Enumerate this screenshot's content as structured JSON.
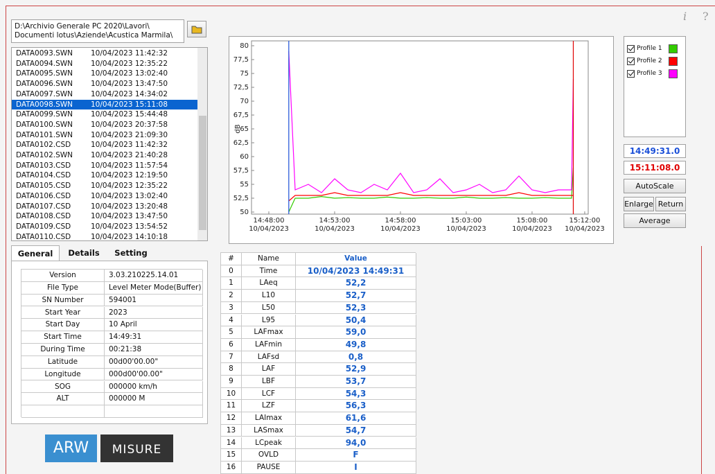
{
  "window": {
    "info_icon": "i",
    "help_icon": "?"
  },
  "path": [
    "D:\\Archivio Generale PC 2020\\Lavori\\",
    "Documenti lotus\\Aziende\\Acustica Marmila\\"
  ],
  "files": [
    [
      "DATA0093.SWN",
      "10/04/2023 11:42:32"
    ],
    [
      "DATA0094.SWN",
      "10/04/2023 12:35:22"
    ],
    [
      "DATA0095.SWN",
      "10/04/2023 13:02:40"
    ],
    [
      "DATA0096.SWN",
      "10/04/2023 13:47:50"
    ],
    [
      "DATA0097.SWN",
      "10/04/2023 14:34:02"
    ],
    [
      "DATA0098.SWN",
      "10/04/2023 15:11:08"
    ],
    [
      "DATA0099.SWN",
      "10/04/2023 15:44:48"
    ],
    [
      "DATA0100.SWN",
      "10/04/2023 20:37:58"
    ],
    [
      "DATA0101.SWN",
      "10/04/2023 21:09:30"
    ],
    [
      "DATA0102.CSD",
      "10/04/2023 11:42:32"
    ],
    [
      "DATA0102.SWN",
      "10/04/2023 21:40:28"
    ],
    [
      "DATA0103.CSD",
      "10/04/2023 11:57:54"
    ],
    [
      "DATA0104.CSD",
      "10/04/2023 12:19:50"
    ],
    [
      "DATA0105.CSD",
      "10/04/2023 12:35:22"
    ],
    [
      "DATA0106.CSD",
      "10/04/2023 13:02:40"
    ],
    [
      "DATA0107.CSD",
      "10/04/2023 13:20:48"
    ],
    [
      "DATA0108.CSD",
      "10/04/2023 13:47:50"
    ],
    [
      "DATA0109.CSD",
      "10/04/2023 13:54:52"
    ],
    [
      "DATA0110.CSD",
      "10/04/2023 14:10:18"
    ]
  ],
  "selected_file": 5,
  "tabs": [
    "General",
    "Details",
    "Setting"
  ],
  "info": [
    [
      "Version",
      "3.03.210225.14.01"
    ],
    [
      "File Type",
      "Level Meter Mode(Buffer)"
    ],
    [
      "SN Number",
      "594001"
    ],
    [
      "Start Year",
      "2023"
    ],
    [
      "Start Day",
      "10 April"
    ],
    [
      "Start Time",
      "14:49:31"
    ],
    [
      "During Time",
      "00:21:38"
    ],
    [
      "Latitude",
      "00d00'00.00\""
    ],
    [
      "Longitude",
      "000d00'00.00\""
    ],
    [
      "SOG",
      "000000 km/h"
    ],
    [
      "ALT",
      "000000 M"
    ]
  ],
  "logos": [
    "ARW",
    "MISURE"
  ],
  "chart_data": {
    "type": "line",
    "ylabel": "dB",
    "x": [
      "14:49:31",
      "14:50:00",
      "14:51:00",
      "14:52:00",
      "14:53:00",
      "14:54:00",
      "14:55:00",
      "14:56:00",
      "14:57:00",
      "14:58:00",
      "14:59:00",
      "15:00:00",
      "15:01:00",
      "15:02:00",
      "15:03:00",
      "15:04:00",
      "15:05:00",
      "15:06:00",
      "15:07:00",
      "15:08:00",
      "15:09:00",
      "15:10:00",
      "15:11:00",
      "15:11:08"
    ],
    "series": [
      {
        "name": "Profile 1",
        "color": "#33cc00",
        "values": [
          50,
          52.5,
          52.5,
          52.8,
          52.5,
          52.6,
          52.5,
          52.5,
          52.7,
          52.5,
          52.5,
          52.6,
          52.5,
          52.5,
          52.7,
          52.5,
          52.5,
          52.6,
          52.5,
          52.5,
          52.6,
          52.5,
          52.5,
          58
        ]
      },
      {
        "name": "Profile 2",
        "color": "#ff0000",
        "values": [
          52,
          53,
          53,
          53,
          53.5,
          53,
          53,
          53,
          53,
          53.5,
          53,
          53,
          53,
          53,
          53,
          53,
          53,
          53,
          53.5,
          53,
          53,
          53,
          53,
          53
        ]
      },
      {
        "name": "Profile 3",
        "color": "#ff00ff",
        "values": [
          79,
          54,
          55,
          53.5,
          56,
          54,
          53.5,
          55,
          54,
          57,
          53.5,
          54,
          56,
          53.5,
          54,
          55,
          53.5,
          54,
          56.5,
          54,
          53.5,
          54,
          54,
          74
        ]
      }
    ],
    "xlim": [
      "14:46:41",
      "15:12:16"
    ],
    "xticks": [
      {
        "time": "14:48:00",
        "date": "10/04/2023"
      },
      {
        "time": "14:53:00",
        "date": "10/04/2023"
      },
      {
        "time": "14:58:00",
        "date": "10/04/2023"
      },
      {
        "time": "15:03:00",
        "date": "10/04/2023"
      },
      {
        "time": "15:08:00",
        "date": "10/04/2023"
      },
      {
        "time": "15:12:00",
        "date": "10/04/2023"
      }
    ],
    "ylim": [
      50,
      80
    ],
    "yticks": [
      50,
      {
        "value": 52.5,
        "label": "52,5"
      },
      55,
      {
        "value": 57.5,
        "label": "57,5"
      },
      60,
      {
        "value": 62.5,
        "label": "62,5"
      },
      65,
      {
        "value": 67.5,
        "label": "67,5"
      },
      70,
      {
        "value": 72.5,
        "label": "72,5"
      },
      75,
      {
        "value": 77.5,
        "label": "77,5"
      },
      80
    ],
    "grid": false,
    "cursors": [
      {
        "time": "14:49:31.0",
        "color": "#1a4fd8"
      },
      {
        "time": "15:11:08.0",
        "color": "#e00000"
      }
    ]
  },
  "buttons": [
    "AutoScale",
    "Enlarge",
    "Return",
    "Average"
  ],
  "values_table": {
    "header": [
      "#",
      "Name",
      "Value"
    ],
    "rows": [
      [
        "0",
        "Time",
        "10/04/2023 14:49:31"
      ],
      [
        "1",
        "LAeq",
        "52,2"
      ],
      [
        "2",
        "L10",
        "52,7"
      ],
      [
        "3",
        "L50",
        "52,3"
      ],
      [
        "4",
        "L95",
        "50,4"
      ],
      [
        "5",
        "LAFmax",
        "59,0"
      ],
      [
        "6",
        "LAFmin",
        "49,8"
      ],
      [
        "7",
        "LAFsd",
        "0,8"
      ],
      [
        "8",
        "LAF",
        "52,9"
      ],
      [
        "9",
        "LBF",
        "53,7"
      ],
      [
        "10",
        "LCF",
        "54,3"
      ],
      [
        "11",
        "LZF",
        "56,3"
      ],
      [
        "12",
        "LAImax",
        "61,6"
      ],
      [
        "13",
        "LASmax",
        "54,7"
      ],
      [
        "14",
        "LCpeak",
        "94,0"
      ],
      [
        "15",
        "OVLD",
        "F"
      ],
      [
        "16",
        "PAUSE",
        "I"
      ]
    ]
  }
}
